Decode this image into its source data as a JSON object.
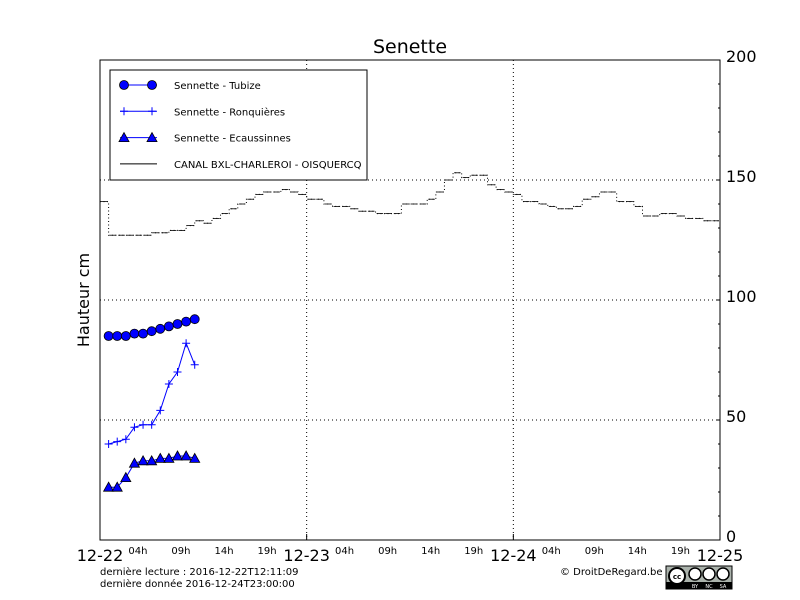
{
  "chart_data": {
    "type": "line",
    "title": "Senette",
    "ylabel": "Hauteur cm",
    "xlabel": "",
    "ylim": [
      0,
      200
    ],
    "xlim": [
      "2016-12-22 00:00",
      "2016-12-25 00:00"
    ],
    "yticks": [
      "0",
      "50",
      "100",
      "150",
      "200"
    ],
    "xticks_major": [
      "12-22",
      "12-23",
      "12-24",
      "12-25"
    ],
    "xticks_minor": [
      "04h",
      "09h",
      "14h",
      "19h"
    ],
    "grid": true,
    "legend_position": "top-left",
    "series": [
      {
        "name": "Sennette - Tubize",
        "marker": "circle",
        "color": "#0000ff",
        "hours": [
          1,
          2,
          3,
          4,
          5,
          6,
          7,
          8,
          9,
          10,
          11
        ],
        "values": [
          85,
          85,
          85,
          86,
          86,
          87,
          88,
          89,
          90,
          91,
          92
        ]
      },
      {
        "name": "Sennette - Ronquières",
        "marker": "plus",
        "color": "#0000ff",
        "hours": [
          1,
          2,
          3,
          4,
          5,
          6,
          7,
          8,
          9,
          10,
          11
        ],
        "values": [
          40,
          41,
          42,
          47,
          48,
          48,
          54,
          65,
          70,
          82,
          73
        ]
      },
      {
        "name": "Sennette - Ecaussinnes",
        "marker": "triangle",
        "color": "#0000ff",
        "hours": [
          1,
          2,
          3,
          4,
          5,
          6,
          7,
          8,
          9,
          10,
          11
        ],
        "values": [
          22,
          22,
          26,
          32,
          33,
          33,
          34,
          34,
          35,
          35,
          34
        ]
      },
      {
        "name": "CANAL BXL-CHARLEROI  - OISQUERCQ",
        "marker": "none",
        "color": "#000000",
        "style": "dotted-steps",
        "hour_start": 0,
        "values": [
          141,
          127,
          127,
          127,
          127,
          127,
          128,
          128,
          129,
          129,
          131,
          133,
          132,
          134,
          136,
          138,
          140,
          142,
          144,
          145,
          145,
          146,
          145,
          144,
          142,
          142,
          140,
          139,
          139,
          138,
          137,
          137,
          136,
          136,
          136,
          140,
          140,
          140,
          142,
          145,
          150,
          153,
          151,
          152,
          152,
          148,
          146,
          145,
          144,
          141,
          141,
          140,
          139,
          138,
          138,
          139,
          142,
          143,
          145,
          145,
          141,
          141,
          139,
          135,
          135,
          136,
          136,
          135,
          134,
          134,
          133,
          133
        ]
      }
    ]
  },
  "footer": {
    "last_read": "dernière lecture : 2016-12-22T12:11:09",
    "last_data": "dernière donnée  2016-12-24T23:00:00",
    "copyright": "© DroitDeRegard.be",
    "license_labels": [
      "BY",
      "NC",
      "SA"
    ]
  }
}
